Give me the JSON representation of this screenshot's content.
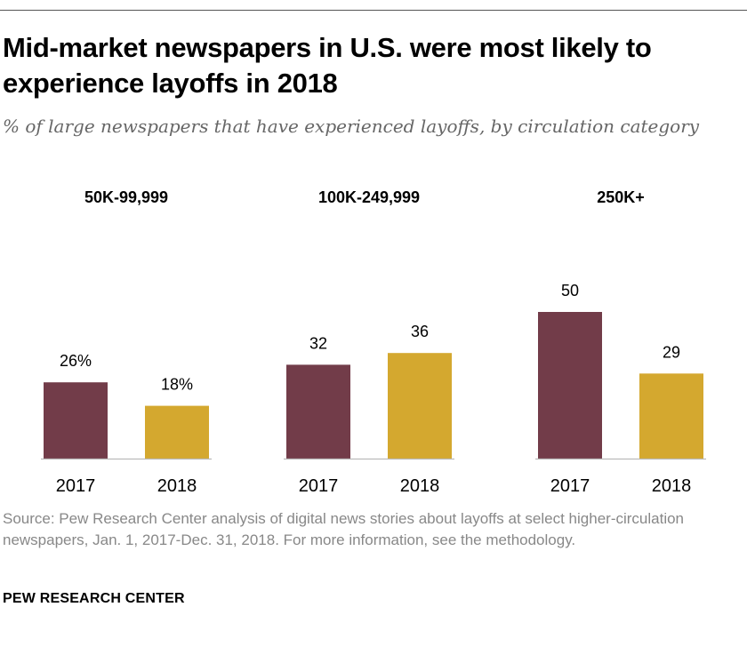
{
  "header": {
    "title": "Mid-market newspapers in U.S. were most likely to experience layoffs in 2018",
    "subtitle": "% of large newspapers that have experienced layoffs, by circulation category"
  },
  "chart_data": {
    "type": "bar",
    "title": "Mid-market newspapers in U.S. were most likely to experience layoffs in 2018",
    "subtitle": "% of large newspapers that have experienced layoffs, by circulation category",
    "ylabel": "",
    "xlabel": "",
    "ylim": [
      0,
      60
    ],
    "grid": false,
    "groups": [
      {
        "name": "50K-99,999",
        "bars": [
          {
            "label": "2017",
            "value": 26,
            "display": "26%",
            "color": "#723C49"
          },
          {
            "label": "2018",
            "value": 18,
            "display": "18%",
            "color": "#D4A82F"
          }
        ]
      },
      {
        "name": "100K-249,999",
        "bars": [
          {
            "label": "2017",
            "value": 32,
            "display": "32",
            "color": "#723C49"
          },
          {
            "label": "2018",
            "value": 36,
            "display": "36",
            "color": "#D4A82F"
          }
        ]
      },
      {
        "name": "250K+",
        "bars": [
          {
            "label": "2017",
            "value": 50,
            "display": "50",
            "color": "#723C49"
          },
          {
            "label": "2018",
            "value": 29,
            "display": "29",
            "color": "#D4A82F"
          }
        ]
      }
    ]
  },
  "footer": {
    "source": "Source: Pew Research Center analysis of digital news stories about layoffs at select higher-circulation newspapers, Jan. 1, 2017-Dec. 31, 2018. For more information, see the methodology.",
    "brand": "PEW RESEARCH CENTER"
  }
}
